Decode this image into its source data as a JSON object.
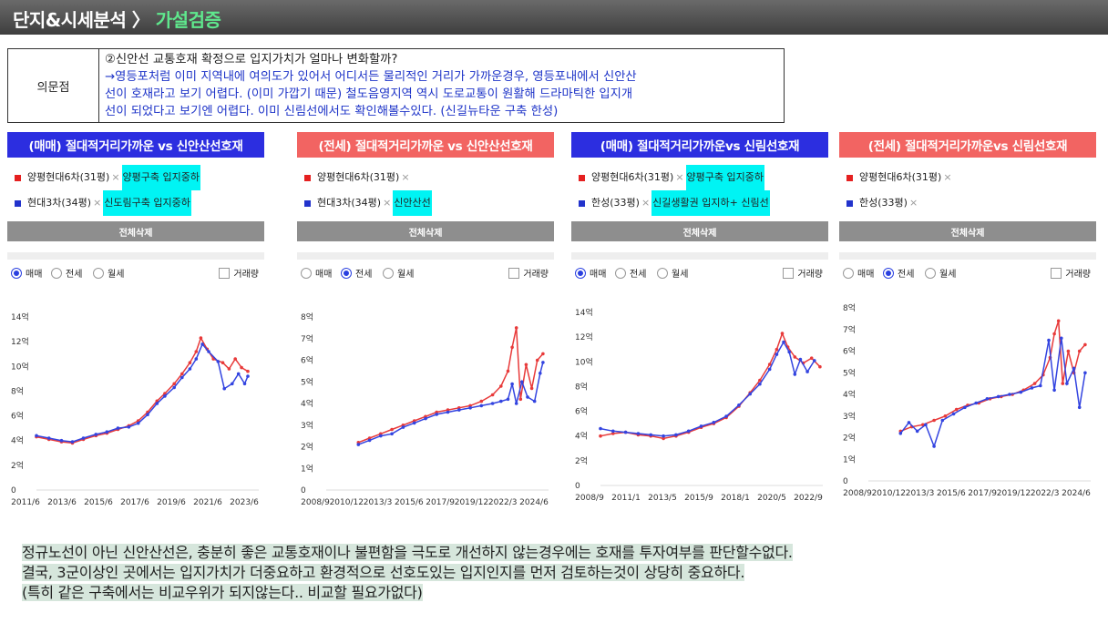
{
  "header": {
    "title_main": "단지&시세분석",
    "sep": " 〉 ",
    "title_sub": "가설검증"
  },
  "question": {
    "label": "의문점",
    "line1": "②신안선 교통호재 확정으로 입지가치가 얼마나 변화할까?",
    "line2": "→영등포처럼 이미 지역내에 여의도가 있어서 어디서든 물리적인 거리가 가까운경우, 영등포내에서 신안산",
    "line3": "선이 호재라고 보기 어렵다. (이미 가깝기 때문) 철도음영지역 역시 도로교통이 원활해 드라마틱한 입지개",
    "line4": "선이 되었다고 보기엔 어렵다. 이미 신림선에서도 확인해볼수있다. (신길뉴타운 구축 한성)"
  },
  "colors": {
    "red": "#e83a3a",
    "blue": "#3344e0",
    "title_blue": "#2c2ee0",
    "title_red": "#f26462",
    "highlight": "#00f4f4"
  },
  "panels": [
    {
      "title": "(매매) 절대적거리가까운 vs 신안산선호재",
      "apt1": "양평현대6차(31평)",
      "apt1_sep": "×",
      "apt1_note": "양평구축 입지중하",
      "apt2": "현대3차(34평)",
      "apt2_sep": "×",
      "apt2_note": "신도림구축 입지중하",
      "button": "전체삭제",
      "radio1": "매매",
      "radio2": "전세",
      "radio3": "월세",
      "checkbox": "거래량"
    },
    {
      "title": "(전세) 절대적거리가까운 vs 신안산선호재",
      "apt1": "양평현대6차(31평)",
      "apt1_sep": "×",
      "apt1_note": "",
      "apt2": "현대3차(34평)",
      "apt2_sep": "×",
      "apt2_note": "신안산선",
      "button": "전체삭제",
      "radio1": "매매",
      "radio2": "전세",
      "radio3": "월세",
      "checkbox": "거래량"
    },
    {
      "title": "(매매) 절대적거리가까운vs 신림선호재",
      "apt1": "양평현대6차(31평)",
      "apt1_sep": "×",
      "apt1_note": "양평구축 입지중하",
      "apt2": "한성(33평)",
      "apt2_sep": "×",
      "apt2_note": "신길생활권 입지하+ 신림선",
      "button": "전체삭제",
      "radio1": "매매",
      "radio2": "전세",
      "radio3": "월세",
      "checkbox": "거래량"
    },
    {
      "title": "(전세) 절대적거리가까운vs 신림선호재",
      "apt1": "양평현대6차(31평)",
      "apt1_sep": "×",
      "apt1_note": "",
      "apt2": "한성(33평)",
      "apt2_sep": "×",
      "apt2_note": "",
      "button": "전체삭제",
      "radio1": "매매",
      "radio2": "전세",
      "radio3": "월세",
      "checkbox": "거래량"
    }
  ],
  "chart_data": [
    {
      "type": "line",
      "title": "(매매) 절대적거리가까운 vs 신안산선호재",
      "unit": "억",
      "ylim": [
        0,
        14
      ],
      "yticks": [
        "0",
        "2억",
        "4억",
        "6억",
        "8억",
        "10억",
        "12억",
        "14억"
      ],
      "xticks": [
        "2011/6",
        "2013/6",
        "2015/6",
        "2017/6",
        "2019/6",
        "2021/6",
        "2023/6"
      ],
      "xlim": [
        2011.0,
        2025.2
      ],
      "series": [
        {
          "name": "양평현대6차(31평)",
          "color": "red",
          "points": [
            [
              2011.0,
              4.3
            ],
            [
              2011.8,
              4.1
            ],
            [
              2012.6,
              3.9
            ],
            [
              2013.3,
              3.8
            ],
            [
              2014.0,
              4.1
            ],
            [
              2014.8,
              4.4
            ],
            [
              2015.5,
              4.6
            ],
            [
              2016.2,
              4.9
            ],
            [
              2016.9,
              5.2
            ],
            [
              2017.5,
              5.6
            ],
            [
              2018.1,
              6.3
            ],
            [
              2018.7,
              7.2
            ],
            [
              2019.2,
              7.8
            ],
            [
              2019.8,
              8.6
            ],
            [
              2020.3,
              9.4
            ],
            [
              2020.8,
              10.3
            ],
            [
              2021.2,
              11.2
            ],
            [
              2021.5,
              12.3
            ],
            [
              2021.9,
              11.4
            ],
            [
              2022.3,
              10.6
            ],
            [
              2022.9,
              10.3
            ],
            [
              2023.3,
              9.8
            ],
            [
              2023.7,
              10.6
            ],
            [
              2024.1,
              9.9
            ],
            [
              2024.5,
              9.6
            ]
          ]
        },
        {
          "name": "현대3차(34평)",
          "color": "blue",
          "points": [
            [
              2011.0,
              4.4
            ],
            [
              2011.8,
              4.2
            ],
            [
              2012.6,
              4.0
            ],
            [
              2013.3,
              3.9
            ],
            [
              2014.0,
              4.2
            ],
            [
              2014.8,
              4.5
            ],
            [
              2015.5,
              4.7
            ],
            [
              2016.2,
              5.0
            ],
            [
              2016.9,
              5.1
            ],
            [
              2017.5,
              5.4
            ],
            [
              2018.1,
              6.1
            ],
            [
              2018.7,
              7.0
            ],
            [
              2019.2,
              7.6
            ],
            [
              2019.8,
              8.3
            ],
            [
              2020.3,
              9.1
            ],
            [
              2020.8,
              9.8
            ],
            [
              2021.2,
              10.6
            ],
            [
              2021.6,
              11.8
            ],
            [
              2022.0,
              11.2
            ],
            [
              2022.6,
              10.4
            ],
            [
              2023.0,
              8.2
            ],
            [
              2023.5,
              8.6
            ],
            [
              2023.9,
              9.4
            ],
            [
              2024.3,
              8.6
            ],
            [
              2024.5,
              9.2
            ]
          ]
        }
      ]
    },
    {
      "type": "line",
      "title": "(전세) 절대적거리가까운 vs 신안산선호재",
      "unit": "억",
      "ylim": [
        0,
        8
      ],
      "yticks": [
        "0",
        "1억",
        "2억",
        "3억",
        "4억",
        "5억",
        "6억",
        "7억",
        "8억"
      ],
      "xticks": [
        "2008/9",
        "2010/12",
        "2013/3",
        "2015/6",
        "2017/9",
        "2019/12",
        "2022/3",
        "2024/6"
      ],
      "xlim": [
        2008.7,
        2024.6
      ],
      "series": [
        {
          "name": "양평현대6차(31평)",
          "color": "red",
          "points": [
            [
              2011.0,
              2.2
            ],
            [
              2011.8,
              2.4
            ],
            [
              2012.6,
              2.6
            ],
            [
              2013.4,
              2.8
            ],
            [
              2014.2,
              3.0
            ],
            [
              2015.0,
              3.2
            ],
            [
              2015.8,
              3.4
            ],
            [
              2016.6,
              3.6
            ],
            [
              2017.4,
              3.7
            ],
            [
              2018.2,
              3.8
            ],
            [
              2019.0,
              3.9
            ],
            [
              2019.8,
              4.1
            ],
            [
              2020.6,
              4.4
            ],
            [
              2021.2,
              4.8
            ],
            [
              2021.7,
              5.5
            ],
            [
              2022.0,
              6.6
            ],
            [
              2022.3,
              7.5
            ],
            [
              2022.6,
              4.2
            ],
            [
              2023.0,
              5.8
            ],
            [
              2023.4,
              4.7
            ],
            [
              2023.8,
              6.0
            ],
            [
              2024.2,
              6.3
            ]
          ]
        },
        {
          "name": "현대3차(34평)",
          "color": "blue",
          "points": [
            [
              2011.0,
              2.1
            ],
            [
              2011.8,
              2.3
            ],
            [
              2012.6,
              2.5
            ],
            [
              2013.4,
              2.6
            ],
            [
              2014.2,
              2.9
            ],
            [
              2015.0,
              3.1
            ],
            [
              2015.8,
              3.3
            ],
            [
              2016.6,
              3.5
            ],
            [
              2017.4,
              3.6
            ],
            [
              2018.2,
              3.7
            ],
            [
              2019.0,
              3.8
            ],
            [
              2019.8,
              3.9
            ],
            [
              2020.6,
              4.0
            ],
            [
              2021.2,
              4.1
            ],
            [
              2021.7,
              4.2
            ],
            [
              2022.0,
              4.9
            ],
            [
              2022.3,
              4.0
            ],
            [
              2022.7,
              5.0
            ],
            [
              2023.1,
              4.3
            ],
            [
              2023.6,
              4.1
            ],
            [
              2024.0,
              5.4
            ],
            [
              2024.2,
              5.9
            ]
          ]
        }
      ]
    },
    {
      "type": "line",
      "title": "(매매) 절대적거리가까운vs 신림선호재",
      "unit": "억",
      "ylim": [
        0,
        14
      ],
      "yticks": [
        "0",
        "2억",
        "4억",
        "6억",
        "8억",
        "10억",
        "12억",
        "14억"
      ],
      "xticks": [
        "2008/9",
        "2011/1",
        "2013/5",
        "2015/9",
        "2018/1",
        "2020/5",
        "2022/9"
      ],
      "xlim": [
        2008.7,
        2024.6
      ],
      "series": [
        {
          "name": "양평현대6차(31평)",
          "color": "red",
          "points": [
            [
              2008.7,
              4.0
            ],
            [
              2009.6,
              4.2
            ],
            [
              2010.5,
              4.3
            ],
            [
              2011.4,
              4.1
            ],
            [
              2012.3,
              4.0
            ],
            [
              2013.2,
              3.8
            ],
            [
              2014.1,
              4.0
            ],
            [
              2015.0,
              4.3
            ],
            [
              2015.9,
              4.7
            ],
            [
              2016.8,
              5.0
            ],
            [
              2017.7,
              5.5
            ],
            [
              2018.6,
              6.4
            ],
            [
              2019.4,
              7.5
            ],
            [
              2020.1,
              8.5
            ],
            [
              2020.8,
              9.8
            ],
            [
              2021.3,
              11.0
            ],
            [
              2021.7,
              12.3
            ],
            [
              2022.1,
              11.2
            ],
            [
              2022.6,
              10.4
            ],
            [
              2023.2,
              9.9
            ],
            [
              2023.8,
              10.3
            ],
            [
              2024.4,
              9.6
            ]
          ]
        },
        {
          "name": "한성(33평)",
          "color": "blue",
          "points": [
            [
              2008.7,
              4.6
            ],
            [
              2009.6,
              4.4
            ],
            [
              2010.5,
              4.3
            ],
            [
              2011.4,
              4.2
            ],
            [
              2012.3,
              4.1
            ],
            [
              2013.2,
              4.0
            ],
            [
              2014.1,
              4.1
            ],
            [
              2015.0,
              4.4
            ],
            [
              2015.9,
              4.8
            ],
            [
              2016.8,
              5.1
            ],
            [
              2017.7,
              5.6
            ],
            [
              2018.6,
              6.5
            ],
            [
              2019.4,
              7.4
            ],
            [
              2020.1,
              8.2
            ],
            [
              2020.8,
              9.4
            ],
            [
              2021.3,
              10.6
            ],
            [
              2021.8,
              11.6
            ],
            [
              2022.2,
              10.8
            ],
            [
              2022.6,
              9.0
            ],
            [
              2023.0,
              10.2
            ],
            [
              2023.5,
              9.2
            ],
            [
              2024.0,
              10.1
            ]
          ]
        }
      ]
    },
    {
      "type": "line",
      "title": "(전세) 절대적거리가까운vs 신림선호재",
      "unit": "억",
      "ylim": [
        0,
        8
      ],
      "yticks": [
        "0",
        "1억",
        "2억",
        "3억",
        "4억",
        "5억",
        "6억",
        "7억",
        "8억"
      ],
      "xticks": [
        "2008/9",
        "2010/12",
        "2013/3",
        "2015/6",
        "2017/9",
        "2019/12",
        "2022/3",
        "2024/6"
      ],
      "xlim": [
        2008.7,
        2024.6
      ],
      "series": [
        {
          "name": "양평현대6차(31평)",
          "color": "red",
          "points": [
            [
              2011.0,
              2.3
            ],
            [
              2011.8,
              2.5
            ],
            [
              2012.6,
              2.6
            ],
            [
              2013.4,
              2.8
            ],
            [
              2014.2,
              3.0
            ],
            [
              2015.0,
              3.3
            ],
            [
              2015.8,
              3.5
            ],
            [
              2016.6,
              3.6
            ],
            [
              2017.4,
              3.8
            ],
            [
              2018.2,
              3.9
            ],
            [
              2019.0,
              4.0
            ],
            [
              2019.8,
              4.2
            ],
            [
              2020.6,
              4.5
            ],
            [
              2021.2,
              4.9
            ],
            [
              2021.7,
              5.7
            ],
            [
              2022.0,
              6.8
            ],
            [
              2022.3,
              7.4
            ],
            [
              2022.6,
              4.5
            ],
            [
              2023.0,
              6.0
            ],
            [
              2023.4,
              5.0
            ],
            [
              2023.8,
              6.0
            ],
            [
              2024.2,
              6.3
            ]
          ]
        },
        {
          "name": "한성(33평)",
          "color": "blue",
          "points": [
            [
              2011.0,
              2.2
            ],
            [
              2011.6,
              2.7
            ],
            [
              2012.2,
              2.3
            ],
            [
              2012.8,
              2.6
            ],
            [
              2013.4,
              1.6
            ],
            [
              2014.0,
              2.8
            ],
            [
              2014.8,
              3.1
            ],
            [
              2015.6,
              3.4
            ],
            [
              2016.4,
              3.6
            ],
            [
              2017.2,
              3.8
            ],
            [
              2018.0,
              3.9
            ],
            [
              2018.8,
              4.0
            ],
            [
              2019.6,
              4.1
            ],
            [
              2020.4,
              4.3
            ],
            [
              2021.0,
              4.4
            ],
            [
              2021.6,
              6.5
            ],
            [
              2022.0,
              4.2
            ],
            [
              2022.5,
              6.6
            ],
            [
              2022.9,
              4.5
            ],
            [
              2023.4,
              5.2
            ],
            [
              2023.8,
              3.4
            ],
            [
              2024.2,
              5.0
            ]
          ]
        }
      ]
    }
  ],
  "summary": {
    "line1": "정규노선이 아닌 신안산선은, 충분히 좋은 교통호재이나 불편함을 극도로 개선하지 않는경우에는 호재를 투자여부를 판단할수없다.",
    "line2": "결국, 3군이상인 곳에서는 입지가치가 더중요하고 환경적으로 선호도있는 입지인지를 먼저 검토하는것이 상당히 중요하다.",
    "line3": "(특히 같은 구축에서는 비교우위가 되지않는다.. 비교할 필요가없다)"
  }
}
